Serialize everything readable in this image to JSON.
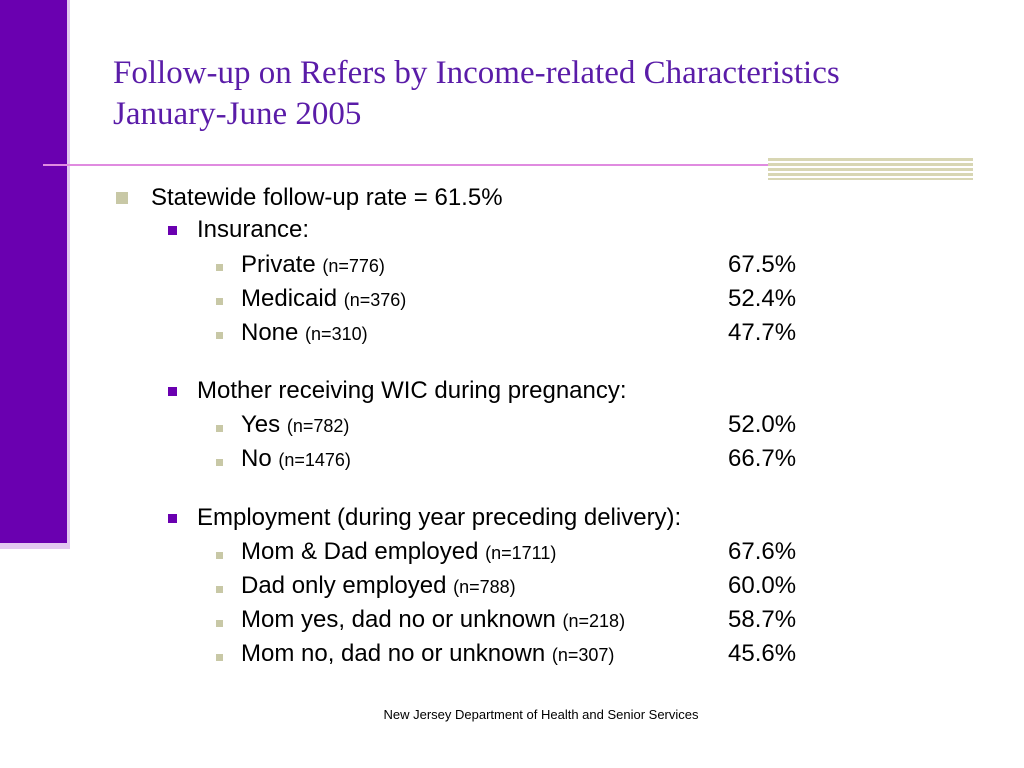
{
  "slide": {
    "title_line1": "Follow-up on Refers by Income-related Characteristics",
    "title_line2": "January-June 2005",
    "footer": "New Jersey Department of Health and Senior Services"
  },
  "content": {
    "statewide": "Statewide follow-up rate = 61.5%",
    "insurance": {
      "heading": "Insurance:",
      "items": [
        {
          "label": "Private",
          "n": "(n=776)",
          "value": "67.5%"
        },
        {
          "label": "Medicaid",
          "n": "(n=376)",
          "value": "52.4%"
        },
        {
          "label": "None",
          "n": "(n=310)",
          "value": "47.7%"
        }
      ]
    },
    "wic": {
      "heading": "Mother receiving WIC during pregnancy:",
      "items": [
        {
          "label": "Yes",
          "n": "(n=782)",
          "value": "52.0%"
        },
        {
          "label": "No",
          "n": "(n=1476)",
          "value": "66.7%"
        }
      ]
    },
    "employment": {
      "heading": "Employment (during year preceding delivery):",
      "items": [
        {
          "label": "Mom & Dad employed",
          "n": "(n=1711)",
          "value": "67.6%"
        },
        {
          "label": "Dad only employed",
          "n": "(n=788)",
          "value": "60.0%"
        },
        {
          "label": "Mom yes, dad no or unknown",
          "n": "(n=218)",
          "value": "58.7%"
        },
        {
          "label": "Mom no, dad no or unknown",
          "n": "(n=307)",
          "value": "45.6%"
        }
      ]
    }
  },
  "colors": {
    "accent_purple": "#6a00b0",
    "title_purple": "#5a1ca8",
    "rule_pink": "#e08be0",
    "bullet_khaki": "#c8c8a6"
  }
}
